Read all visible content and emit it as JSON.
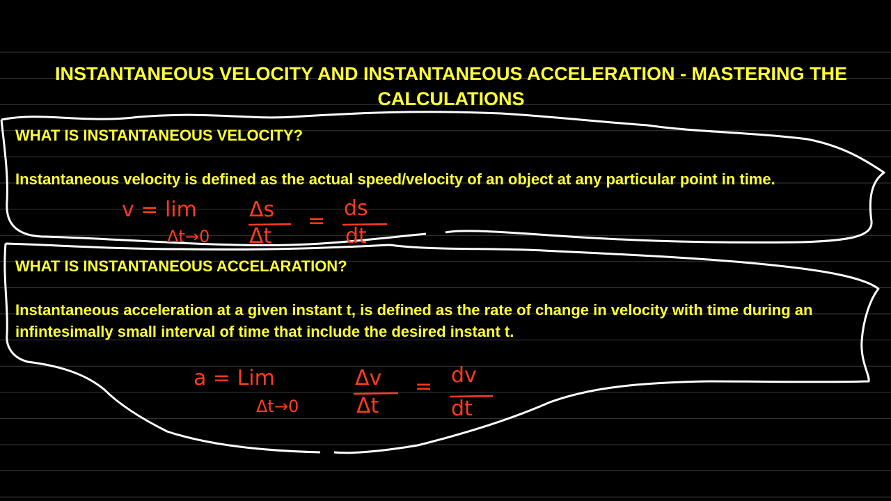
{
  "title": "INSTANTANEOUS VELOCITY AND INSTANTANEOUS ACCELERATION - MASTERING THE CALCULATIONS",
  "sections": [
    {
      "heading": "WHAT IS INSTANTANEOUS VELOCITY?",
      "body": "Instantaneous velocity is defined as the actual speed/velocity of an object at any particular point in time.",
      "formula": {
        "lhs": "v = lim",
        "limit": "Δt→0",
        "numerator": "Δs",
        "denominator": "Δt",
        "equals": "=",
        "result_numerator": "ds",
        "result_denominator": "dt"
      }
    },
    {
      "heading": "WHAT IS INSTANTANEOUS ACCELARATION?",
      "body": "Instantaneous acceleration at a given instant t, is defined as the rate of change in velocity with time during an infintesimally small interval of time that include the desired instant t.",
      "formula": {
        "lhs": "a = Lim",
        "limit": "Δt→0",
        "numerator": "Δv",
        "denominator": "Δt",
        "equals": "=",
        "result_numerator": "dv",
        "result_denominator": "dt"
      }
    }
  ]
}
